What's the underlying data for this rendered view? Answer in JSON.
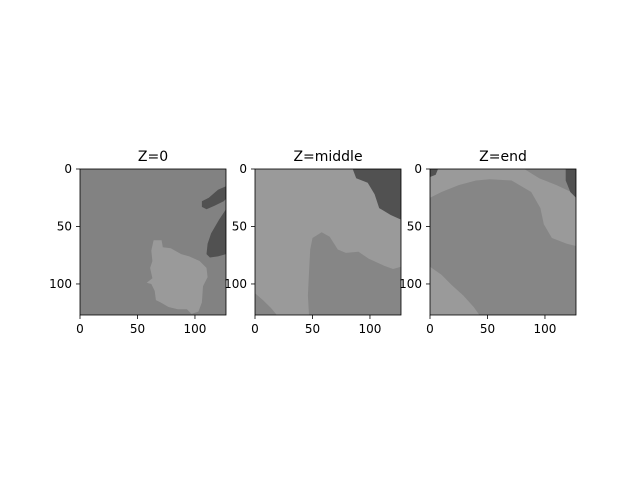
{
  "colors": {
    "background": "#ffffff",
    "axis": "#000000",
    "level_dark": "#515151",
    "level_mid": "#868686",
    "level_light": "#9a9a9a",
    "panel0_base": "#828282"
  },
  "chart_data": [
    {
      "type": "heatmap",
      "title": "Z=0",
      "xlabel": "",
      "ylabel": "",
      "xlim": [
        0,
        127
      ],
      "ylim": [
        127,
        0
      ],
      "xticks": [
        0,
        50,
        100
      ],
      "yticks": [
        0,
        50,
        100
      ],
      "grid": false,
      "base_level": "panel0_base",
      "regions": [
        {
          "level": "level_light",
          "outline": [
            [
              64,
              62
            ],
            [
              71,
              62
            ],
            [
              72,
              68
            ],
            [
              79,
              69
            ],
            [
              88,
              74
            ],
            [
              95,
              76
            ],
            [
              104,
              80
            ],
            [
              110,
              86
            ],
            [
              111,
              94
            ],
            [
              107,
              102
            ],
            [
              106,
              116
            ],
            [
              103,
              124
            ],
            [
              97,
              126
            ],
            [
              93,
              122
            ],
            [
              85,
              122
            ],
            [
              77,
              120
            ],
            [
              70,
              116
            ],
            [
              66,
              114
            ],
            [
              65,
              106
            ],
            [
              62,
              100
            ],
            [
              58,
              99
            ],
            [
              63,
              95
            ],
            [
              61,
              86
            ],
            [
              63,
              80
            ],
            [
              62,
              71
            ]
          ]
        },
        {
          "level": "level_dark",
          "outline": [
            [
              127,
              35
            ],
            [
              121,
              44
            ],
            [
              114,
              56
            ],
            [
              111,
              65
            ],
            [
              110,
              74
            ],
            [
              113,
              77
            ],
            [
              120,
              76
            ],
            [
              127,
              74
            ]
          ]
        },
        {
          "level": "level_dark",
          "outline": [
            [
              127,
              15
            ],
            [
              120,
              18
            ],
            [
              112,
              25
            ],
            [
              106,
              28
            ],
            [
              106,
              33
            ],
            [
              110,
              35
            ],
            [
              117,
              32
            ],
            [
              125,
              28
            ],
            [
              127,
              26
            ]
          ]
        }
      ]
    },
    {
      "type": "heatmap",
      "title": "Z=middle",
      "xlabel": "",
      "ylabel": "",
      "xlim": [
        0,
        127
      ],
      "ylim": [
        127,
        0
      ],
      "xticks": [
        0,
        50,
        100
      ],
      "yticks": [
        0,
        50,
        100
      ],
      "grid": false,
      "base_level": "level_light",
      "regions": [
        {
          "level": "level_mid",
          "outline": [
            [
              47,
              127
            ],
            [
              46,
              110
            ],
            [
              47,
              90
            ],
            [
              48,
              70
            ],
            [
              50,
              60
            ],
            [
              58,
              55
            ],
            [
              65,
              59
            ],
            [
              72,
              70
            ],
            [
              79,
              73
            ],
            [
              90,
              72
            ],
            [
              99,
              78
            ],
            [
              112,
              84
            ],
            [
              120,
              87
            ],
            [
              127,
              85
            ],
            [
              127,
              127
            ]
          ]
        },
        {
          "level": "level_mid",
          "outline": [
            [
              0,
              108
            ],
            [
              7,
              114
            ],
            [
              14,
              121
            ],
            [
              19,
              127
            ],
            [
              0,
              127
            ]
          ]
        },
        {
          "level": "level_dark",
          "outline": [
            [
              85,
              0
            ],
            [
              127,
              0
            ],
            [
              127,
              44
            ],
            [
              118,
              40
            ],
            [
              108,
              34
            ],
            [
              104,
              22
            ],
            [
              98,
              12
            ],
            [
              88,
              8
            ]
          ]
        }
      ]
    },
    {
      "type": "heatmap",
      "title": "Z=end",
      "xlabel": "",
      "ylabel": "",
      "xlim": [
        0,
        127
      ],
      "ylim": [
        127,
        0
      ],
      "xticks": [
        0,
        50,
        100
      ],
      "yticks": [
        0,
        50,
        100
      ],
      "grid": false,
      "base_level": "level_mid",
      "regions": [
        {
          "level": "level_light",
          "outline": [
            [
              0,
              0
            ],
            [
              82,
              0
            ],
            [
              95,
              8
            ],
            [
              110,
              14
            ],
            [
              127,
              22
            ],
            [
              127,
              67
            ],
            [
              119,
              65
            ],
            [
              106,
              60
            ],
            [
              99,
              48
            ],
            [
              96,
              34
            ],
            [
              88,
              20
            ],
            [
              71,
              10
            ],
            [
              52,
              9
            ],
            [
              40,
              10
            ],
            [
              25,
              14
            ],
            [
              10,
              20
            ],
            [
              0,
              25
            ]
          ]
        },
        {
          "level": "level_light",
          "outline": [
            [
              0,
              85
            ],
            [
              10,
              92
            ],
            [
              19,
              101
            ],
            [
              29,
              110
            ],
            [
              38,
              120
            ],
            [
              43,
              127
            ],
            [
              0,
              127
            ]
          ]
        },
        {
          "level": "level_dark",
          "outline": [
            [
              118,
              0
            ],
            [
              127,
              0
            ],
            [
              127,
              25
            ],
            [
              122,
              20
            ],
            [
              118,
              10
            ]
          ]
        },
        {
          "level": "level_dark",
          "outline": [
            [
              0,
              0
            ],
            [
              7,
              0
            ],
            [
              5,
              5
            ],
            [
              0,
              7
            ]
          ]
        }
      ]
    }
  ]
}
